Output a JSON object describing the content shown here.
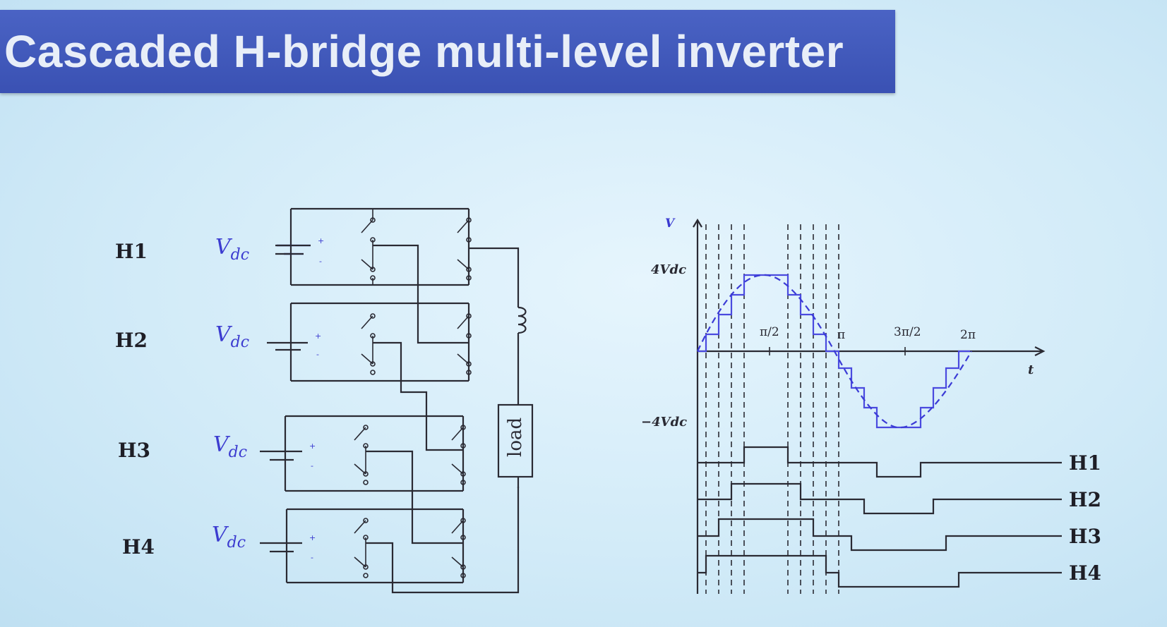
{
  "title": "Cascaded H-bridge multi-level inverter",
  "circuit": {
    "cells": [
      {
        "label": "H1",
        "source": "V",
        "source_sub": "dc"
      },
      {
        "label": "H2",
        "source": "V",
        "source_sub": "dc"
      },
      {
        "label": "H3",
        "source": "V",
        "source_sub": "dc"
      },
      {
        "label": "H4",
        "source": "V",
        "source_sub": "dc"
      }
    ],
    "load_label": "load",
    "plus": "+",
    "minus": "-"
  },
  "waveform": {
    "y_axis_label": "V",
    "x_axis_label": "t",
    "y_ticks": [
      "4Vdc",
      "−4Vdc"
    ],
    "x_ticks": [
      "π/2",
      "π",
      "3π/2",
      "2π"
    ],
    "row_labels": [
      "H1",
      "H2",
      "H3",
      "H4"
    ]
  },
  "colors": {
    "banner": "#3f57ba",
    "title_text": "#e8eef8",
    "accent_blue": "#3c3cd0",
    "wire": "#2a2a33"
  }
}
